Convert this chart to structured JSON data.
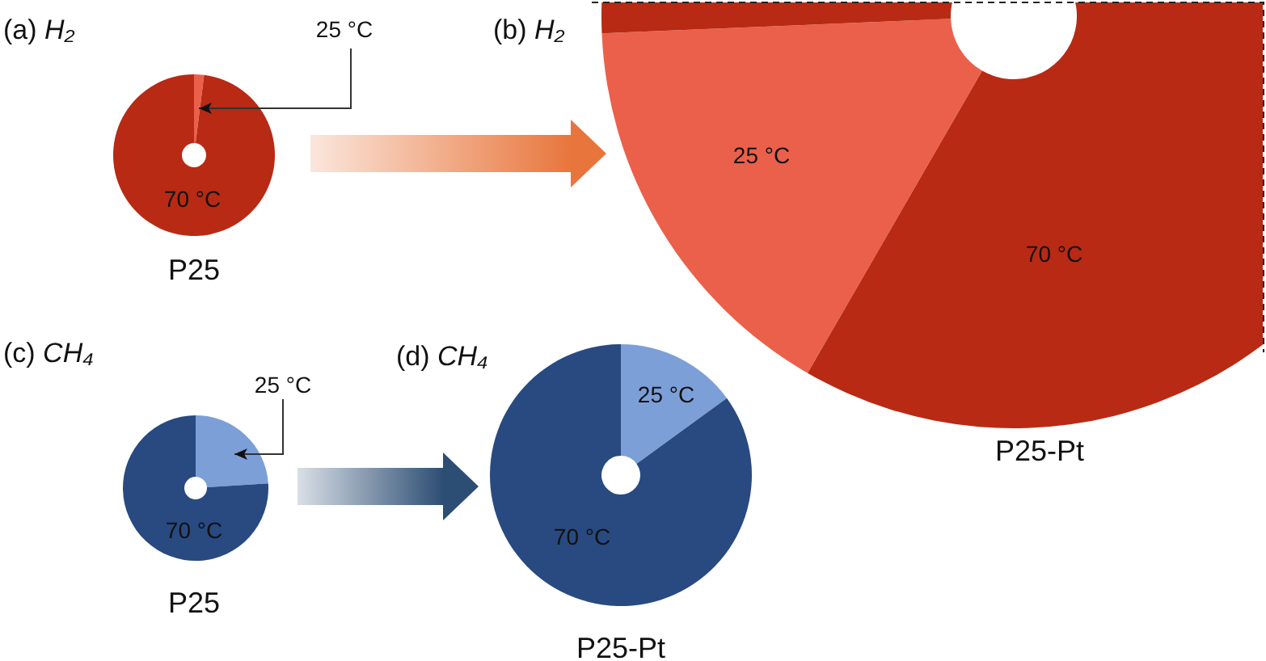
{
  "chart_data": [
    {
      "type": "donut",
      "title": "(a) H₂",
      "categories": [
        "25 °C",
        "70 °C"
      ],
      "values": [
        2,
        98
      ],
      "colors": [
        "#eb604a",
        "#b82a14"
      ],
      "xlabel": "P25"
    },
    {
      "type": "donut",
      "title": "(b) H₂",
      "categories": [
        "25 °C",
        "70 °C"
      ],
      "values": [
        16,
        84
      ],
      "colors": [
        "#eb604a",
        "#b82a14"
      ],
      "xlabel": "P25-Pt"
    },
    {
      "type": "donut",
      "title": "(c) CH₄",
      "categories": [
        "25 °C",
        "70 °C"
      ],
      "values": [
        24,
        76
      ],
      "colors": [
        "#7d9fd8",
        "#284a80"
      ],
      "xlabel": "P25"
    },
    {
      "type": "donut",
      "title": "(d) CH₄",
      "categories": [
        "25 °C",
        "70 °C"
      ],
      "values": [
        15,
        85
      ],
      "colors": [
        "#7d9fd8",
        "#284a80"
      ],
      "xlabel": "P25-Pt"
    }
  ]
}
